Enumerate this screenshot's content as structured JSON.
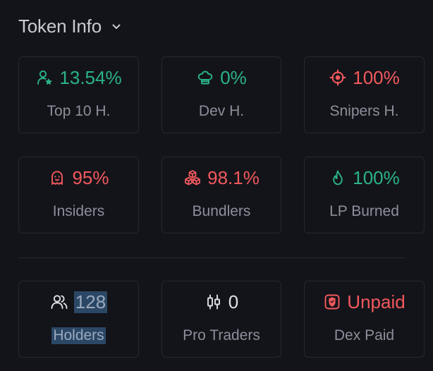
{
  "header": {
    "title": "Token Info"
  },
  "cards": {
    "top10": {
      "value": "13.54%",
      "label": "Top 10 H."
    },
    "dev": {
      "value": "0%",
      "label": "Dev H."
    },
    "snipers": {
      "value": "100%",
      "label": "Snipers H."
    },
    "insiders": {
      "value": "95%",
      "label": "Insiders"
    },
    "bundlers": {
      "value": "98.1%",
      "label": "Bundlers"
    },
    "lp": {
      "value": "100%",
      "label": "LP Burned"
    },
    "holders": {
      "value": "128",
      "label": "Holders"
    },
    "pro": {
      "value": "0",
      "label": "Pro Traders"
    },
    "dex": {
      "value": "Unpaid",
      "label": "Dex Paid"
    }
  },
  "colors": {
    "green": "#2ab388",
    "red": "#f2595e",
    "card_border": "#262830",
    "background": "#131419",
    "selection": "#2b4766"
  },
  "icons": {
    "top10": "user-star-icon",
    "dev": "chef-hat-icon",
    "snipers": "crosshair-icon",
    "insiders": "ghost-icon",
    "bundlers": "boxes-icon",
    "lp": "flame-icon",
    "holders": "users-icon",
    "pro": "candlestick-icon",
    "dex": "shield-icon"
  }
}
